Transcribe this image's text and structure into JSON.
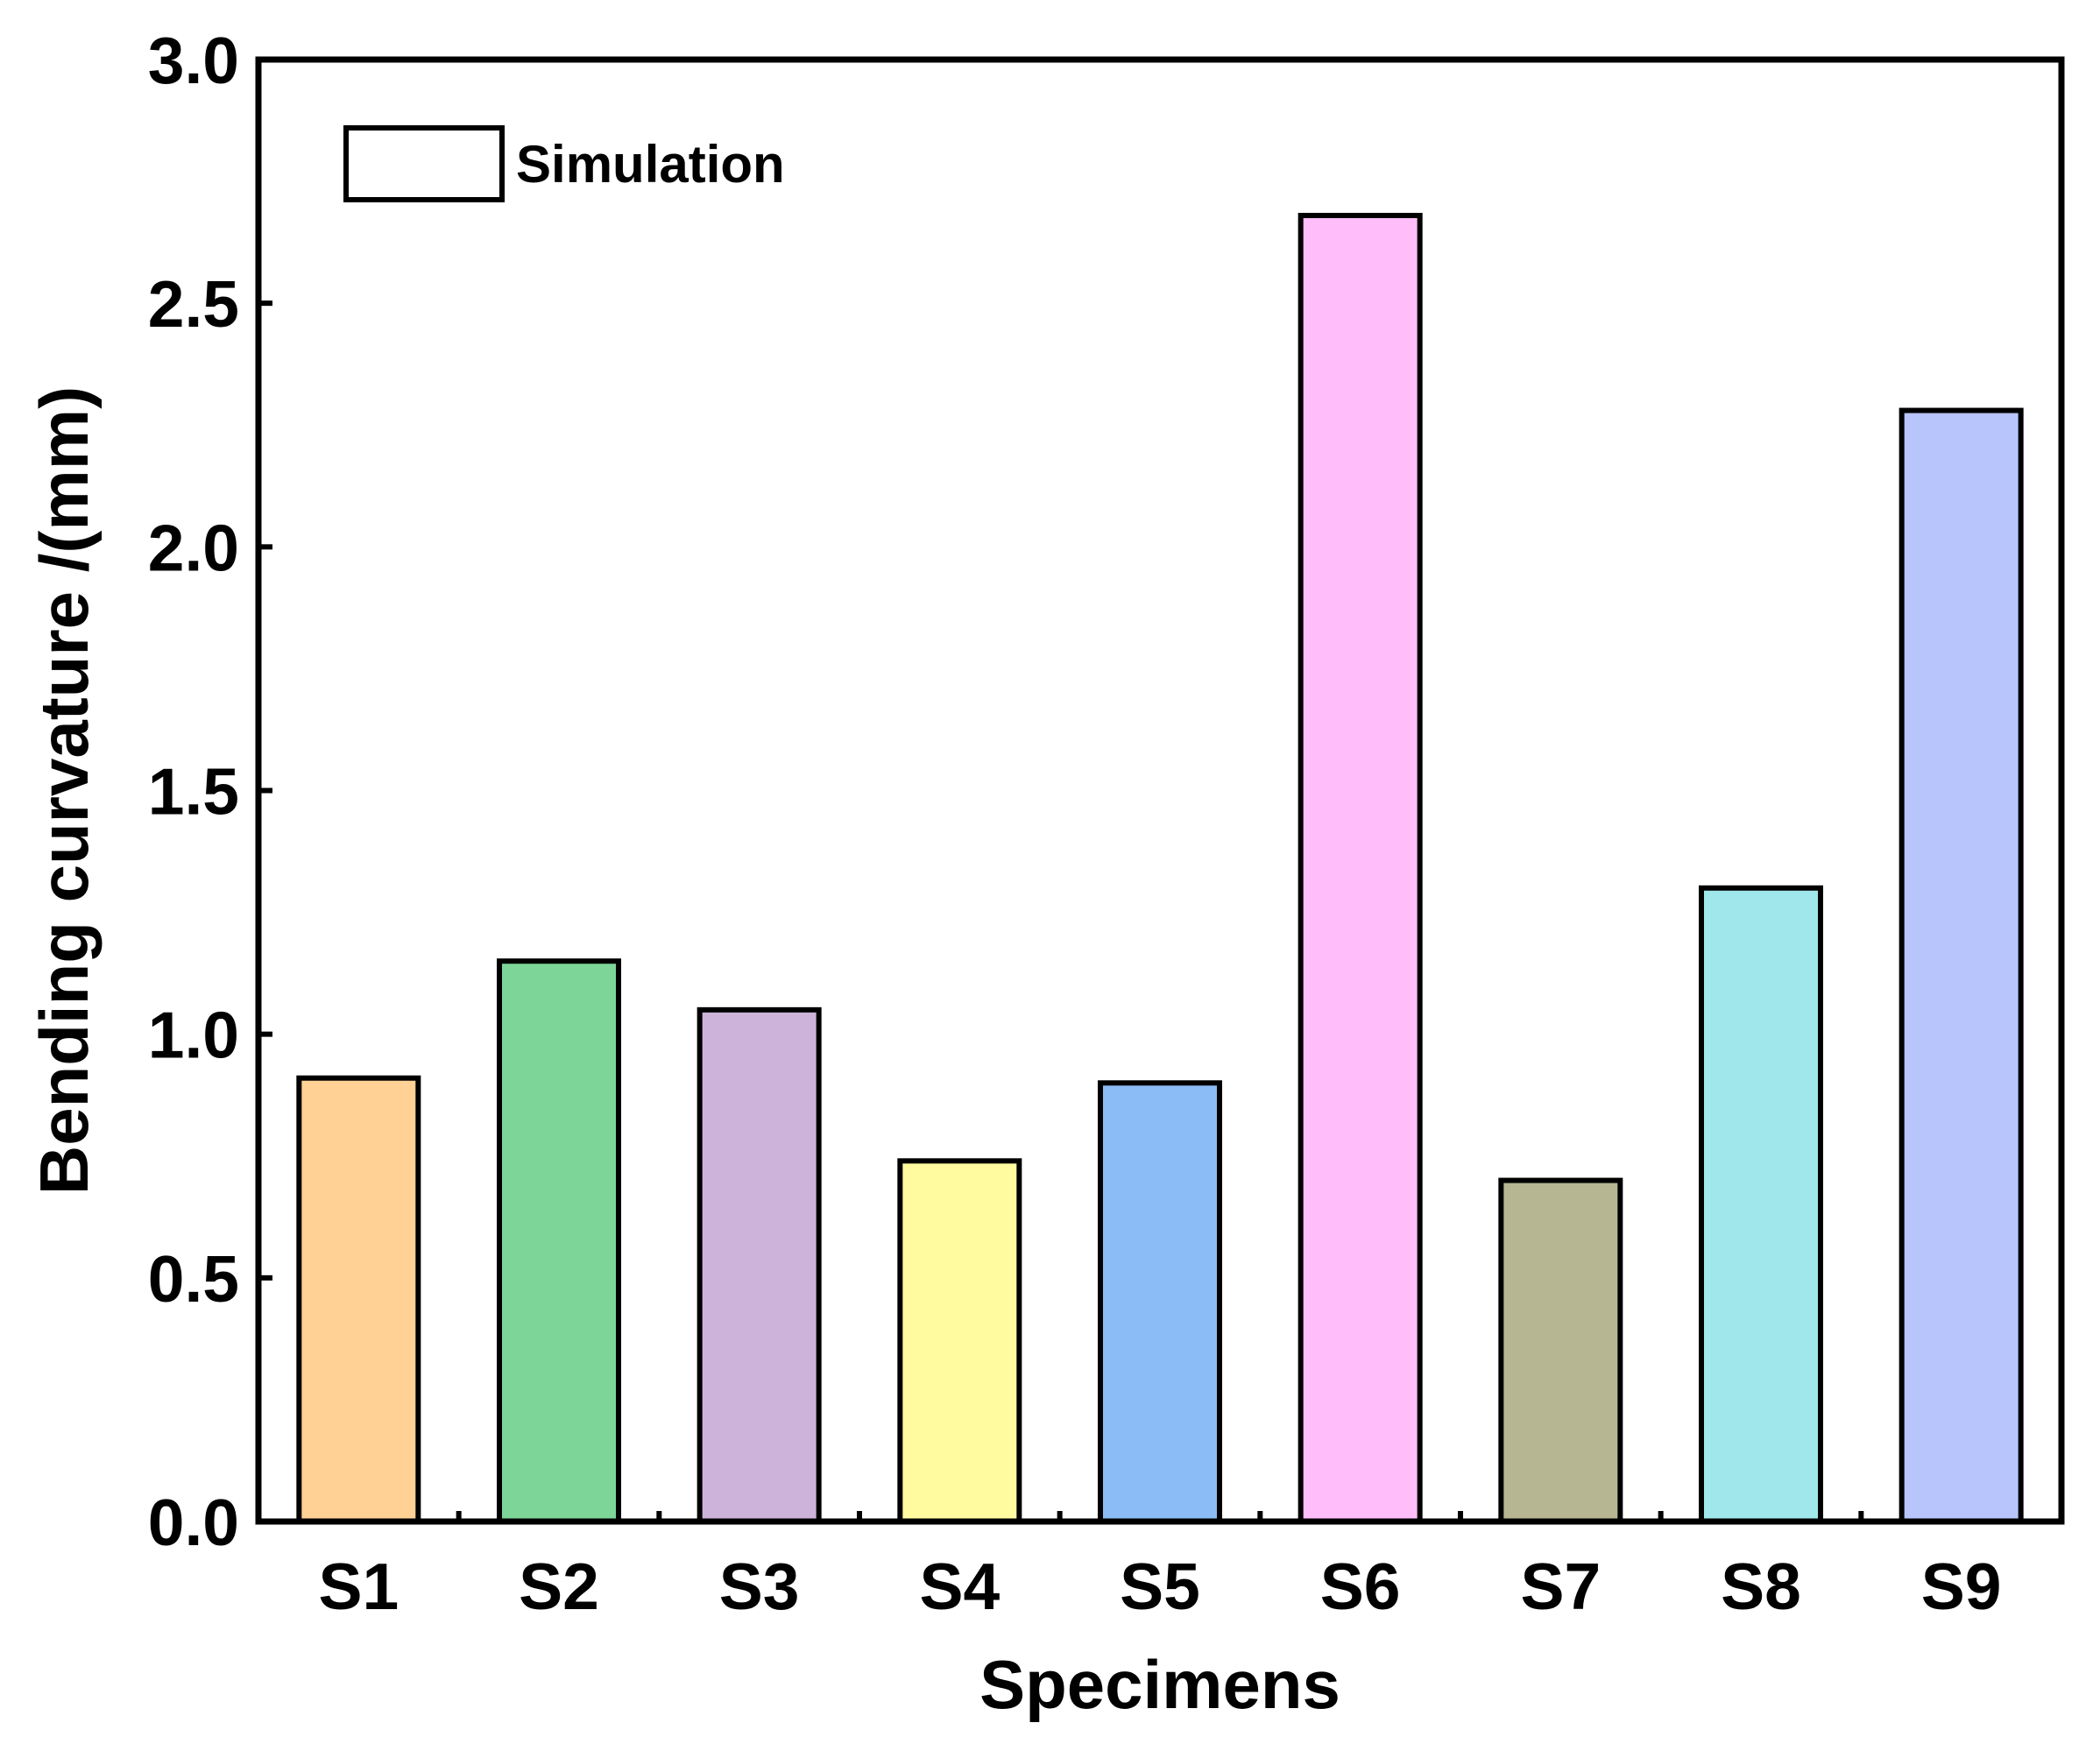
{
  "chart_data": {
    "type": "bar",
    "title": "",
    "xlabel": "Specimens",
    "ylabel": "Bending curvature /(mm)",
    "categories": [
      "S1",
      "S2",
      "S3",
      "S4",
      "S5",
      "S6",
      "S7",
      "S8",
      "S9"
    ],
    "series": [
      {
        "name": "Simulation",
        "values": [
          0.91,
          1.15,
          1.05,
          0.74,
          0.9,
          2.68,
          0.7,
          1.3,
          2.28
        ]
      }
    ],
    "colors": [
      "#ffd195",
      "#7dd698",
      "#cdb3d9",
      "#fffb9e",
      "#8cbcf6",
      "#ffbdfa",
      "#b6b692",
      "#a0e7ec",
      "#b8c4fc"
    ],
    "ylim": [
      0,
      3.0
    ],
    "yticks": [
      "0.0",
      "0.5",
      "1.0",
      "1.5",
      "2.0",
      "2.5",
      "3.0"
    ],
    "legend": {
      "label": "Simulation",
      "position": "top-left"
    },
    "grid": false
  }
}
